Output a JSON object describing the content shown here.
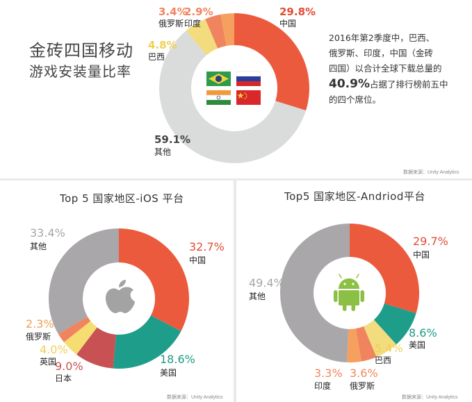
{
  "title_line1": "金砖四国移动",
  "title_line2": "游戏安装量比率",
  "description": {
    "line1": "2016年第2季度中，巴西、",
    "line2": "俄罗斯、印度，中国（金砖",
    "line3": "四国）以合计全球下载总量的",
    "highlight": "40.9%",
    "line4_rest": "占据了排行榜前五中",
    "line5": "的四个席位。"
  },
  "source_text": "数据来源：Unity Analytics",
  "colors": {
    "china": "#ec5a3e",
    "russia": "#f0845e",
    "india": "#f5a05e",
    "brazil": "#f3dc7e",
    "other_top": "#dadcdc",
    "other_gray": "#a9a7a9",
    "usa": "#1e9e8a",
    "japan": "#c85253",
    "uk": "#f5dd72",
    "android": "#8cc044",
    "apple": "#a3a3a3"
  },
  "icons": {
    "ios": "apple-logo-icon",
    "android": "android-robot-icon"
  },
  "chart_data": [
    {
      "type": "pie",
      "title": "金砖四国移动游戏安装量比率",
      "categories": [
        "中国",
        "其他",
        "巴西",
        "俄罗斯",
        "印度"
      ],
      "values": [
        29.8,
        59.1,
        4.8,
        3.4,
        2.9
      ],
      "labels": [
        "29.8%",
        "59.1%",
        "4.8%",
        "3.4%",
        "2.9%"
      ],
      "donut": true,
      "legend": "none",
      "center_icons": [
        "brazil-flag-icon",
        "russia-flag-icon",
        "india-flag-icon",
        "china-flag-icon"
      ]
    },
    {
      "type": "pie",
      "title": "Top 5  国家地区-iOS 平台",
      "categories": [
        "中国",
        "美国",
        "日本",
        "英国",
        "俄罗斯",
        "其他"
      ],
      "values": [
        32.7,
        18.6,
        9.0,
        4.0,
        2.3,
        33.4
      ],
      "labels": [
        "32.7%",
        "18.6%",
        "9.0%",
        "4.0%",
        "2.3%",
        "33.4%"
      ],
      "donut": true,
      "legend": "none"
    },
    {
      "type": "pie",
      "title": "Top5 国家地区-Andriod平台",
      "categories": [
        "中国",
        "美国",
        "巴西",
        "俄罗斯",
        "印度",
        "其他"
      ],
      "values": [
        29.7,
        8.6,
        5.4,
        3.6,
        3.3,
        49.4
      ],
      "labels": [
        "29.7%",
        "8.6%",
        "5.4%",
        "3.6%",
        "3.3%",
        "49.4%"
      ],
      "donut": true,
      "legend": "none"
    }
  ]
}
